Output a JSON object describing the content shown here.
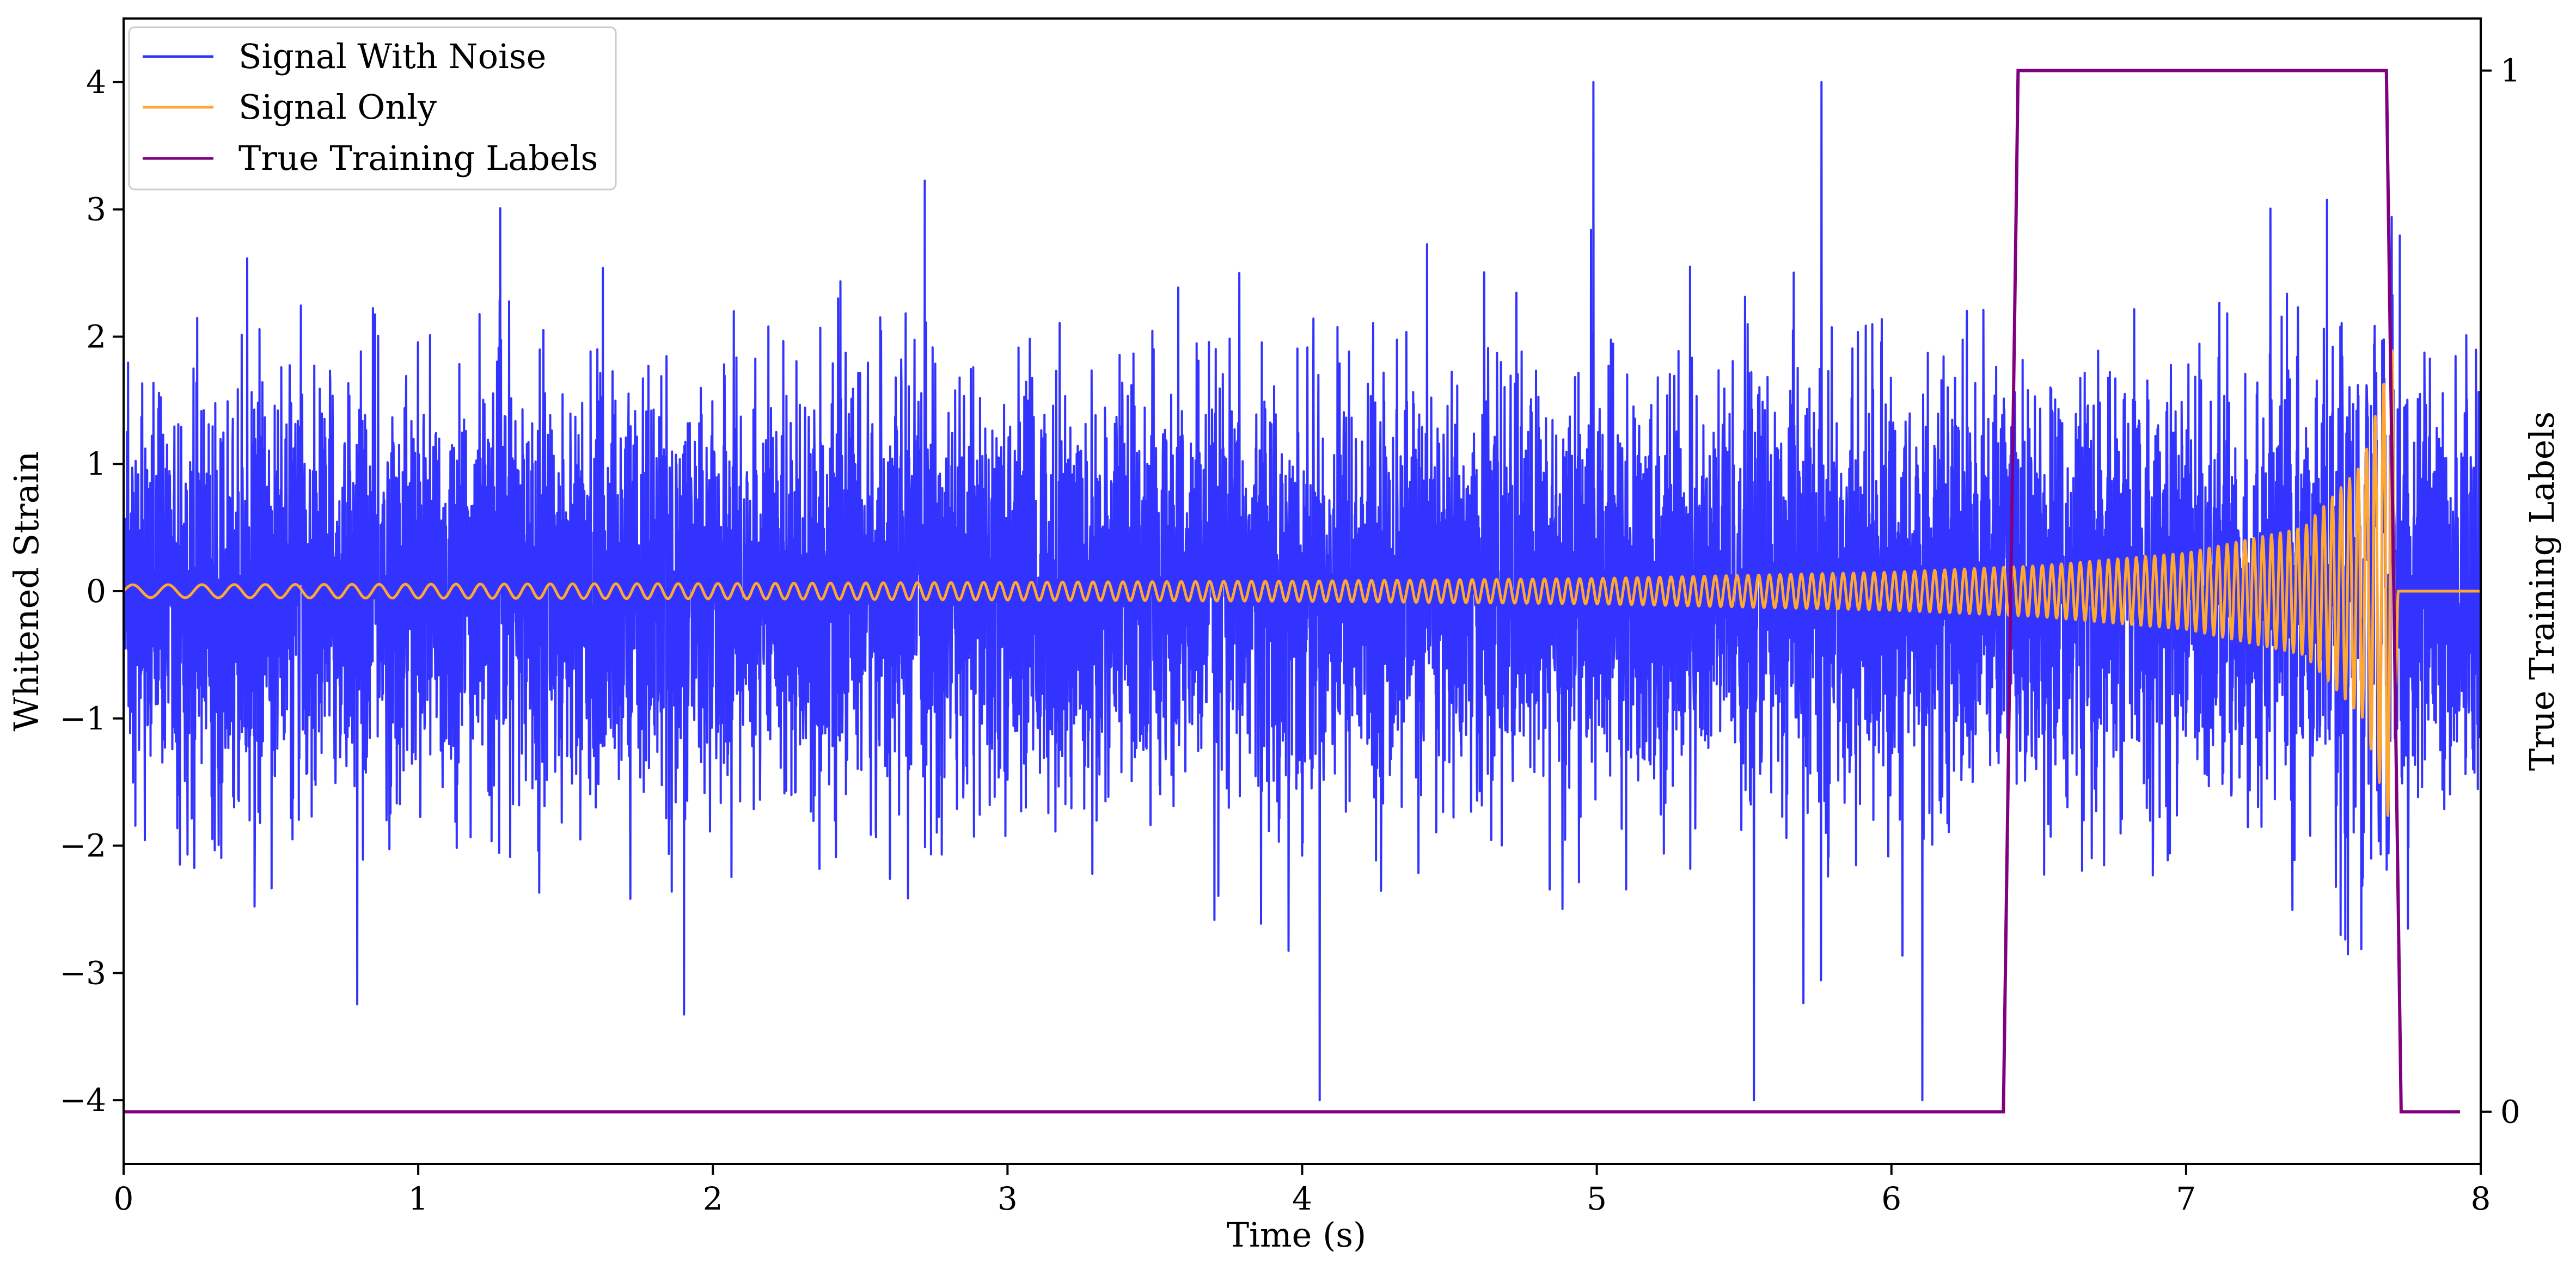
{
  "chart_data": {
    "type": "line",
    "title": "",
    "xlabel": "Time (s)",
    "ylabel": "Whitened Strain",
    "y2label": "True Training Labels",
    "xlim": [
      0,
      8
    ],
    "ylim": [
      -4.5,
      4.5
    ],
    "y2lim": [
      -0.05,
      1.05
    ],
    "xticks": [
      "0",
      "1",
      "2",
      "3",
      "4",
      "5",
      "6",
      "7",
      "8"
    ],
    "yticks": [
      "−4",
      "−3",
      "−2",
      "−1",
      "0",
      "1",
      "2",
      "3",
      "4"
    ],
    "y2ticks": [
      "0",
      "1"
    ],
    "grid": false,
    "legend_position": "top-left",
    "series": [
      {
        "name": "Signal With Noise",
        "axis": "left",
        "color": "#3333ff",
        "description": "whitened strain: Gaussian-like noise, typical amplitude about ±1.5 with spikes reaching about ±4, sampled across 0–8 s",
        "approx_range": [
          -4.0,
          4.0
        ]
      },
      {
        "name": "Signal Only",
        "axis": "left",
        "color": "#ffa733",
        "description": "chirp waveform with rising frequency and amplitude",
        "points": [
          {
            "t": 0.0,
            "amp": 0.05
          },
          {
            "t": 2.0,
            "amp": 0.06
          },
          {
            "t": 4.0,
            "amp": 0.08
          },
          {
            "t": 5.0,
            "amp": 0.1
          },
          {
            "t": 6.0,
            "amp": 0.15
          },
          {
            "t": 6.5,
            "amp": 0.2
          },
          {
            "t": 7.0,
            "amp": 0.3
          },
          {
            "t": 7.4,
            "amp": 0.5
          },
          {
            "t": 7.6,
            "amp": 1.0
          },
          {
            "t": 7.7,
            "amp": 1.9
          },
          {
            "t": 7.72,
            "amp": 0.0
          },
          {
            "t": 8.0,
            "amp": 0.0
          }
        ],
        "start_frequency_cycles_per_s": 8,
        "end_frequency_cycles_per_s": 35
      },
      {
        "name": "True Training Labels",
        "axis": "right",
        "color": "#800080",
        "x": [
          0.0,
          6.38,
          6.43,
          7.68,
          7.73,
          7.93
        ],
        "y": [
          0,
          0,
          1,
          1,
          0,
          0
        ]
      }
    ]
  }
}
